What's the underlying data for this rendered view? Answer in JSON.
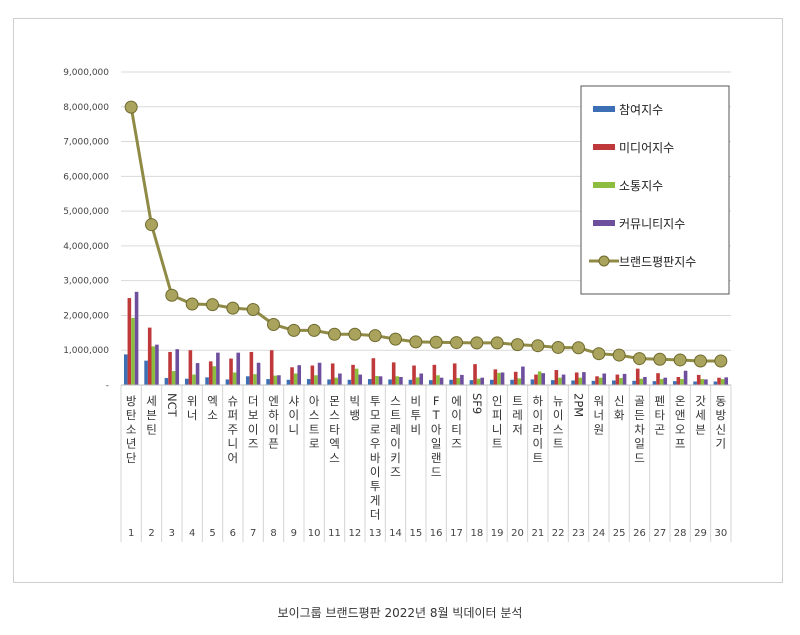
{
  "caption": "보이그룹 브랜드평판 2022년 8월 빅데이터 분석",
  "colors": {
    "참여지수": "#3d6fb5",
    "미디어지수": "#c0393a",
    "소통지수": "#8cbd3f",
    "커뮤니티지수": "#6e4f9e",
    "브랜드평판지수": "#8f8a45"
  },
  "chart_data": {
    "type": "bar",
    "title": "",
    "xlabel": "",
    "ylabel": "",
    "ylim": [
      0,
      9000000
    ],
    "yticks": [
      "-",
      "1,000,000",
      "2,000,000",
      "3,000,000",
      "4,000,000",
      "5,000,000",
      "6,000,000",
      "7,000,000",
      "8,000,000",
      "9,000,000"
    ],
    "grid": true,
    "legend_position": "right",
    "ranks": [
      "1",
      "2",
      "3",
      "4",
      "5",
      "6",
      "7",
      "8",
      "9",
      "10",
      "11",
      "12",
      "13",
      "14",
      "15",
      "16",
      "17",
      "18",
      "19",
      "20",
      "21",
      "22",
      "23",
      "24",
      "25",
      "26",
      "27",
      "28",
      "29",
      "30"
    ],
    "categories": [
      "방탄소년단",
      "세븐틴",
      "NCT",
      "위너",
      "엑소",
      "슈퍼주니어",
      "더보이즈",
      "엔하이픈",
      "샤이니",
      "아스트로",
      "몬스타엑스",
      "빅뱅",
      "투모로우바이투게더",
      "스트레이키즈",
      "비투비",
      "FT아일랜드",
      "에이티즈",
      "SF9",
      "인피니트",
      "트레저",
      "하이라이트",
      "뉴이스트",
      "2PM",
      "워너원",
      "신화",
      "골든차일드",
      "펜타곤",
      "온앤오프",
      "갓세븐",
      "동방신기"
    ],
    "series": [
      {
        "name": "참여지수",
        "kind": "bar",
        "values": [
          880000,
          700000,
          200000,
          180000,
          220000,
          160000,
          250000,
          170000,
          150000,
          170000,
          160000,
          150000,
          170000,
          160000,
          150000,
          140000,
          150000,
          140000,
          150000,
          150000,
          160000,
          140000,
          130000,
          120000,
          130000,
          120000,
          110000,
          110000,
          100000,
          100000
        ]
      },
      {
        "name": "미디어지수",
        "kind": "bar",
        "values": [
          2500000,
          1650000,
          950000,
          1000000,
          680000,
          760000,
          950000,
          1000000,
          510000,
          560000,
          620000,
          580000,
          770000,
          650000,
          560000,
          580000,
          620000,
          600000,
          450000,
          380000,
          300000,
          430000,
          360000,
          250000,
          300000,
          470000,
          340000,
          230000,
          290000,
          210000
        ]
      },
      {
        "name": "소통지수",
        "kind": "bar",
        "values": [
          1930000,
          1110000,
          400000,
          300000,
          540000,
          360000,
          310000,
          270000,
          330000,
          280000,
          210000,
          470000,
          260000,
          250000,
          220000,
          280000,
          200000,
          180000,
          350000,
          190000,
          390000,
          210000,
          210000,
          210000,
          200000,
          180000,
          170000,
          170000,
          170000,
          170000
        ]
      },
      {
        "name": "커뮤니티지수",
        "kind": "bar",
        "values": [
          2680000,
          1160000,
          1030000,
          630000,
          930000,
          930000,
          640000,
          280000,
          570000,
          640000,
          330000,
          300000,
          250000,
          230000,
          330000,
          210000,
          290000,
          210000,
          360000,
          530000,
          340000,
          300000,
          370000,
          330000,
          320000,
          230000,
          210000,
          410000,
          160000,
          220000
        ]
      },
      {
        "name": "브랜드평판지수",
        "kind": "line",
        "values": [
          7990000,
          4610000,
          2580000,
          2330000,
          2310000,
          2210000,
          2170000,
          1740000,
          1570000,
          1570000,
          1460000,
          1460000,
          1420000,
          1320000,
          1240000,
          1230000,
          1220000,
          1210000,
          1210000,
          1160000,
          1130000,
          1080000,
          1070000,
          900000,
          860000,
          760000,
          740000,
          720000,
          690000,
          690000
        ]
      }
    ]
  }
}
